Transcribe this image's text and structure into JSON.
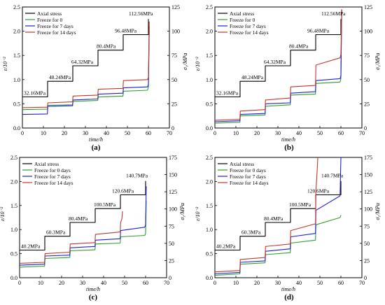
{
  "figure": {
    "panel_labels": [
      "(a)",
      "(b)",
      "(c)",
      "(d)"
    ]
  },
  "chart_data": [
    {
      "panel": "(a)",
      "type": "line",
      "xlabel": "time/h",
      "ylabel_left": "ε/10⁻²",
      "ylabel_right": "σ₁/MPa",
      "xlim": [
        0,
        70
      ],
      "xticks": [
        0,
        10,
        20,
        30,
        40,
        50,
        60,
        70
      ],
      "ylim_left": [
        0,
        2.5
      ],
      "yticks_left": [
        0,
        0.5,
        1.0,
        1.5,
        2.0,
        2.5
      ],
      "ylim_right": [
        0,
        125
      ],
      "yticks_right": [
        0,
        25,
        50,
        75,
        100,
        125
      ],
      "legend_position": "top-left",
      "stress_labels": [
        "32.16MPa",
        "48.24MPa",
        "64.32MPa",
        "80.4MPa",
        "96.48MPa",
        "112.56MPa"
      ],
      "series": [
        {
          "name": "Axial stress",
          "color": "#000000",
          "axis": "right",
          "x": [
            0,
            12,
            12,
            24,
            24,
            36,
            36,
            48,
            48,
            60,
            60
          ],
          "y": [
            32.16,
            32.16,
            48.24,
            48.24,
            64.32,
            64.32,
            80.4,
            80.4,
            96.48,
            96.48,
            112.56
          ]
        },
        {
          "name": "Freeze for 0",
          "color": "#2ca02c",
          "axis": "left",
          "x": [
            0,
            11.9,
            12.1,
            23.9,
            24.1,
            35.9,
            36.1,
            47.9,
            48.1,
            59.6,
            60,
            60.4
          ],
          "y": [
            0.38,
            0.39,
            0.47,
            0.48,
            0.55,
            0.57,
            0.64,
            0.66,
            0.76,
            0.78,
            0.85,
            2.0
          ]
        },
        {
          "name": "Freeze for 7 days",
          "color": "#1f1fd6",
          "axis": "left",
          "x": [
            0,
            11.9,
            12.1,
            23.9,
            24.1,
            35.9,
            36.1,
            47.9,
            48.1,
            59.6,
            60,
            60.4
          ],
          "y": [
            0.28,
            0.29,
            0.45,
            0.46,
            0.58,
            0.6,
            0.7,
            0.72,
            0.83,
            0.85,
            0.9,
            2.1
          ]
        },
        {
          "name": "Freeze for 14 days",
          "color": "#c0392b",
          "axis": "left",
          "x": [
            0,
            11.9,
            12.1,
            23.9,
            24.1,
            35.9,
            36.1,
            47.9,
            48.1,
            59.6,
            60,
            60.4
          ],
          "y": [
            0.42,
            0.43,
            0.52,
            0.54,
            0.66,
            0.68,
            0.8,
            0.82,
            0.98,
            1.0,
            1.05,
            2.2
          ]
        }
      ]
    },
    {
      "panel": "(b)",
      "type": "line",
      "xlabel": "time/h",
      "ylabel_left": "ε/10⁻²",
      "ylabel_right": "σ₁/MPa",
      "xlim": [
        0,
        70
      ],
      "xticks": [
        0,
        10,
        20,
        30,
        40,
        50,
        60,
        70
      ],
      "ylim_left": [
        0,
        2.5
      ],
      "yticks_left": [
        0,
        0.5,
        1.0,
        1.5,
        2.0,
        2.5
      ],
      "ylim_right": [
        0,
        125
      ],
      "yticks_right": [
        0,
        25,
        50,
        75,
        100,
        125
      ],
      "legend_position": "top-left",
      "stress_labels": [
        "32.16MPa",
        "48.24MPa",
        "64.32MPa",
        "80.4MPa",
        "96.48MPa",
        "112.56MPa"
      ],
      "series": [
        {
          "name": "Axial stress",
          "color": "#000000",
          "axis": "right",
          "x": [
            0,
            12,
            12,
            24,
            24,
            36,
            36,
            48,
            48,
            60,
            60
          ],
          "y": [
            32.16,
            32.16,
            48.24,
            48.24,
            64.32,
            64.32,
            80.4,
            80.4,
            96.48,
            96.48,
            112.56
          ]
        },
        {
          "name": "Freeze for 0",
          "color": "#2ca02c",
          "axis": "left",
          "x": [
            0,
            11.9,
            12.1,
            23.9,
            24.1,
            35.9,
            36.1,
            47.9,
            48.1,
            59.6,
            60,
            60.4
          ],
          "y": [
            0.1,
            0.12,
            0.25,
            0.27,
            0.45,
            0.48,
            0.68,
            0.7,
            0.92,
            0.95,
            1.02,
            2.45
          ]
        },
        {
          "name": "Freeze for 7 days",
          "color": "#1f1fd6",
          "axis": "left",
          "x": [
            0,
            11.9,
            12.1,
            23.9,
            24.1,
            35.9,
            36.1,
            47.9,
            48.1,
            59.6,
            60,
            60.4
          ],
          "y": [
            0.13,
            0.15,
            0.28,
            0.3,
            0.5,
            0.52,
            0.72,
            0.75,
            0.98,
            1.02,
            1.08,
            2.45
          ]
        },
        {
          "name": "Freeze for 14 days",
          "color": "#c0392b",
          "axis": "left",
          "x": [
            0,
            11.9,
            12.1,
            23.9,
            24.1,
            35.9,
            36.1,
            47.9,
            48.1,
            59.6,
            60,
            60.4
          ],
          "y": [
            0.16,
            0.18,
            0.35,
            0.38,
            0.58,
            0.62,
            0.85,
            0.88,
            1.3,
            1.45,
            1.52,
            2.45
          ]
        }
      ]
    },
    {
      "panel": "(c)",
      "type": "line",
      "xlabel": "time/h",
      "ylabel_left": "ε/10⁻²",
      "ylabel_right": "σ₁/MPa",
      "xlim": [
        0,
        70
      ],
      "xticks": [
        0,
        10,
        20,
        30,
        40,
        50,
        60,
        70
      ],
      "ylim_left": [
        0,
        2.5
      ],
      "yticks_left": [
        0,
        0.5,
        1.0,
        1.5,
        2.0,
        2.5
      ],
      "ylim_right": [
        0,
        175
      ],
      "yticks_right": [
        0,
        25,
        50,
        75,
        100,
        125,
        150,
        175
      ],
      "legend_position": "top-left",
      "stress_labels": [
        "40.2MPa",
        "60.3MPa",
        "80.4MPa",
        "100.5MPa",
        "120.6MPa",
        "140.7MPa"
      ],
      "series": [
        {
          "name": "Axial stress",
          "color": "#000000",
          "axis": "right",
          "x": [
            0,
            12,
            12,
            24,
            24,
            36,
            36,
            48,
            48,
            60,
            60
          ],
          "y": [
            40.2,
            40.2,
            60.3,
            60.3,
            80.4,
            80.4,
            100.5,
            100.5,
            120.6,
            120.6,
            140.7
          ]
        },
        {
          "name": "Freeze for 0 days",
          "color": "#2ca02c",
          "axis": "left",
          "x": [
            0,
            11.9,
            12.1,
            23.9,
            24.1,
            35.9,
            36.1,
            47.9,
            48.1,
            59.6,
            60,
            60.3
          ],
          "y": [
            0.22,
            0.24,
            0.4,
            0.42,
            0.56,
            0.58,
            0.7,
            0.72,
            0.85,
            0.88,
            0.92,
            1.6
          ]
        },
        {
          "name": "Freeze for 7 days",
          "color": "#1f1fd6",
          "axis": "left",
          "x": [
            0,
            11.9,
            12.1,
            23.9,
            24.1,
            35.9,
            36.1,
            47.9,
            48.1,
            59.6,
            60,
            60.3
          ],
          "y": [
            0.26,
            0.28,
            0.45,
            0.47,
            0.62,
            0.65,
            0.78,
            0.81,
            0.98,
            1.05,
            1.1,
            1.9
          ]
        },
        {
          "name": "Freeze for 14 days",
          "color": "#c0392b",
          "axis": "left",
          "x": [
            0,
            11.9,
            12.1,
            23.9,
            24.1,
            35.9,
            36.1,
            47.9,
            48.1,
            48.7,
            49
          ],
          "y": [
            0.3,
            0.32,
            0.5,
            0.53,
            0.7,
            0.73,
            0.9,
            0.95,
            1.15,
            1.22,
            1.38
          ]
        }
      ]
    },
    {
      "panel": "(d)",
      "type": "line",
      "xlabel": "time/h",
      "ylabel_left": "ε/10⁻²",
      "ylabel_right": "σ₁/MPa",
      "xlim": [
        0,
        70
      ],
      "xticks": [
        0,
        10,
        20,
        30,
        40,
        50,
        60,
        70
      ],
      "ylim_left": [
        0,
        2.5
      ],
      "yticks_left": [
        0,
        0.5,
        1.0,
        1.5,
        2.0,
        2.5
      ],
      "ylim_right": [
        0,
        175
      ],
      "yticks_right": [
        0,
        25,
        50,
        75,
        100,
        125,
        150,
        175
      ],
      "legend_position": "top-left",
      "stress_labels": [
        "40.2MPa",
        "60.3MPa",
        "80.4MPa",
        "100.5MPa",
        "120.6MPa",
        "140.7MPa"
      ],
      "series": [
        {
          "name": "Axial stress",
          "color": "#000000",
          "axis": "right",
          "x": [
            0,
            12,
            12,
            24,
            24,
            36,
            36,
            48,
            48,
            60,
            60
          ],
          "y": [
            40.2,
            40.2,
            60.3,
            60.3,
            80.4,
            80.4,
            100.5,
            100.5,
            120.6,
            120.6,
            140.7
          ]
        },
        {
          "name": "Freeze for 0 days",
          "color": "#2ca02c",
          "axis": "left",
          "x": [
            0,
            11.9,
            12.1,
            23.9,
            24.1,
            35.9,
            36.1,
            47.9,
            48.1,
            59.6,
            60
          ],
          "y": [
            0.05,
            0.08,
            0.28,
            0.31,
            0.48,
            0.52,
            0.72,
            0.78,
            1.1,
            1.25,
            1.3
          ]
        },
        {
          "name": "Freeze for 7 days",
          "color": "#1f1fd6",
          "axis": "left",
          "x": [
            0,
            11.9,
            12.1,
            23.9,
            24.1,
            35.9,
            36.1,
            47.9,
            48.1,
            59.6,
            60
          ],
          "y": [
            0.08,
            0.11,
            0.32,
            0.35,
            0.55,
            0.6,
            0.85,
            0.92,
            1.4,
            1.7,
            2.5
          ]
        },
        {
          "name": "Freeze for 14 days",
          "color": "#c0392b",
          "axis": "left",
          "x": [
            0,
            11.9,
            12.1,
            23.9,
            24.1,
            35.9,
            36.1,
            47.9,
            48.1,
            48.8,
            49
          ],
          "y": [
            0.12,
            0.15,
            0.38,
            0.42,
            0.65,
            0.7,
            0.98,
            1.12,
            1.8,
            2.3,
            2.5
          ]
        }
      ]
    }
  ]
}
